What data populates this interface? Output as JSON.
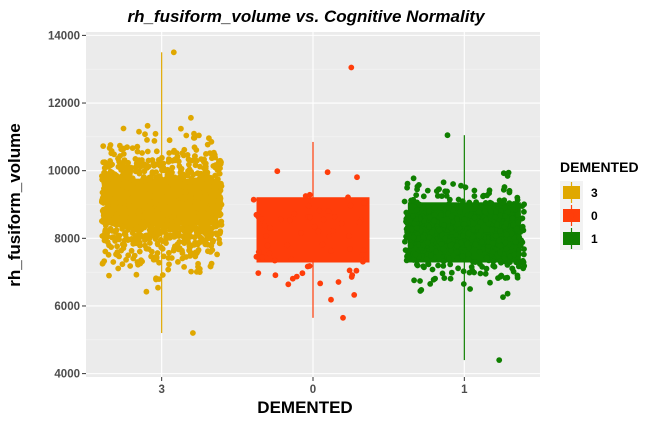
{
  "chart_data": {
    "type": "boxplot_jitter",
    "title": "rh_fusiform_volume vs. Cognitive Normality",
    "xlabel": "DEMENTED",
    "ylabel": "rh_fusiform_volume",
    "categories": [
      "3",
      "0",
      "1"
    ],
    "ylim": [
      3900,
      14100
    ],
    "yticks": [
      4000,
      6000,
      8000,
      10000,
      12000,
      14000
    ],
    "grid": true,
    "legend": {
      "title": "DEMENTED",
      "position": "right",
      "entries": [
        "3",
        "0",
        "1"
      ]
    },
    "series": [
      {
        "name": "3",
        "color": "#E0A800",
        "box": {
          "min": 5200,
          "q1": 8400,
          "median": 8950,
          "q3": 9750,
          "max": 13500
        },
        "points": {
          "count": 1400,
          "min": 5200,
          "max": 13500,
          "center": 9000,
          "spread": 1150
        }
      },
      {
        "name": "0",
        "color": "#FF3D0A",
        "box": {
          "min": 5650,
          "q1": 7300,
          "median": 8200,
          "q3": 9200,
          "max": 10850
        },
        "points": {
          "count": 65,
          "min": 5650,
          "max": 13050,
          "center": 8200,
          "spread": 1300
        }
      },
      {
        "name": "1",
        "color": "#0F7F00",
        "box": {
          "min": 4400,
          "q1": 7300,
          "median": 8150,
          "q3": 9050,
          "max": 11050
        },
        "points": {
          "count": 520,
          "min": 4400,
          "max": 11050,
          "center": 8150,
          "spread": 950
        }
      }
    ]
  }
}
